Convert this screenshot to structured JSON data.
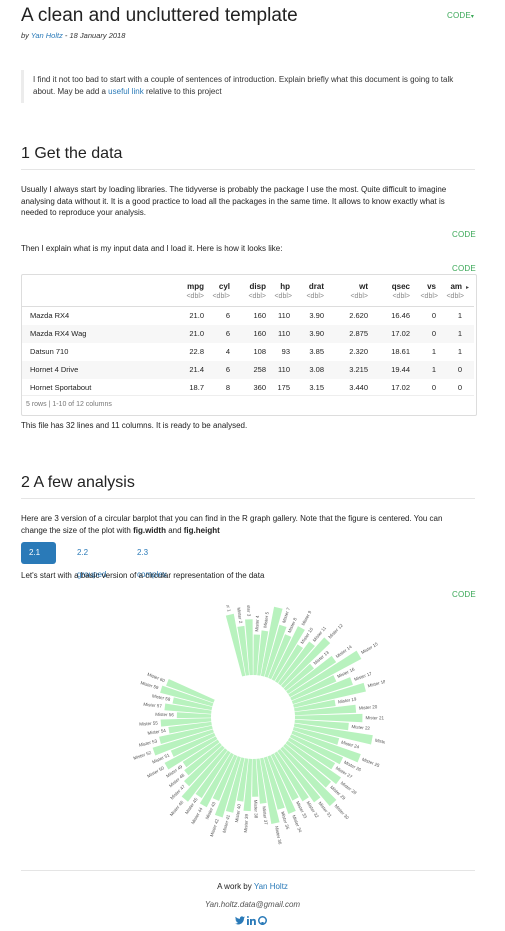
{
  "header": {
    "title": "A clean and uncluttered template",
    "byline_prefix": "by ",
    "author": "Yan Holtz",
    "byline_date": " - 18 January 2018",
    "code_menu": "CODE"
  },
  "intro": {
    "text_before": "I find it not too bad to start with a couple of sentences of introduction. Explain briefly what this document is going to talk about. May be add a ",
    "link": "useful link",
    "text_after": " relative to this project"
  },
  "section1": {
    "title": "1 Get the data",
    "para1": [
      "Usually I always start by loading libraries. The tidyverse is probably the package I use the most. Quite difficult to imagine",
      "analysing data without it. It is a good practice to load all the packages in the same time. It allows to know exactly what is",
      "needed to reproduce your analysis."
    ],
    "code1": "CODE",
    "para2": "Then I explain what is my input data and I load it. Here is how it looks like:",
    "code2": "CODE",
    "table": {
      "columns": [
        "mpg",
        "cyl",
        "disp",
        "hp",
        "drat",
        "wt",
        "qsec",
        "vs",
        "am"
      ],
      "types": [
        "<dbl>",
        "<dbl>",
        "<dbl>",
        "<dbl>",
        "<dbl>",
        "<dbl>",
        "<dbl>",
        "<dbl>",
        "<dbl>"
      ],
      "rows": [
        {
          "name": "Mazda RX4",
          "values": [
            "21.0",
            "6",
            "160",
            "110",
            "3.90",
            "2.620",
            "16.46",
            "0",
            "1"
          ]
        },
        {
          "name": "Mazda RX4 Wag",
          "values": [
            "21.0",
            "6",
            "160",
            "110",
            "3.90",
            "2.875",
            "17.02",
            "0",
            "1"
          ]
        },
        {
          "name": "Datsun 710",
          "values": [
            "22.8",
            "4",
            "108",
            "93",
            "3.85",
            "2.320",
            "18.61",
            "1",
            "1"
          ]
        },
        {
          "name": "Hornet 4 Drive",
          "values": [
            "21.4",
            "6",
            "258",
            "110",
            "3.08",
            "3.215",
            "19.44",
            "1",
            "0"
          ]
        },
        {
          "name": "Hornet Sportabout",
          "values": [
            "18.7",
            "8",
            "360",
            "175",
            "3.15",
            "3.440",
            "17.02",
            "0",
            "0"
          ]
        }
      ],
      "footer": "5 rows | 1-10 of 12 columns",
      "more_arrow": "▸"
    },
    "para3": "This file has 32 lines and 11 columns. It is ready to be analysed."
  },
  "section2": {
    "title": "2 A few analysis",
    "para1_line1": "Here are 3 version of a circular barplot that you can find in the R graph gallery. Note that the figure is centered. You can",
    "para1_line2_prefix": "change the size of the plot with ",
    "bold1": "fig.width",
    "and": " and ",
    "bold2": "fig.height",
    "tabs": [
      "2.1 basic",
      "2.2 grouped",
      "2.3 complex"
    ],
    "para2": "Let's start with a basic version of a circular representation of the data",
    "code": "CODE"
  },
  "chart_data": {
    "type": "bar",
    "polar": true,
    "bar_color": "#b8f2be",
    "categories": [
      "Mister 1",
      "Mister 2",
      "Mister 3",
      "Mister 4",
      "Mister 5",
      "Mister 6",
      "Mister 7",
      "Mister 8",
      "Mister 9",
      "Mister 10",
      "Mister 11",
      "Mister 12",
      "Mister 13",
      "Mister 14",
      "Mister 15",
      "Mister 16",
      "Mister 17",
      "Mister 18",
      "Mister 19",
      "Mister 20",
      "Mister 21",
      "Mister 22",
      "Mister 23",
      "Mister 24",
      "Mister 25",
      "Mister 26",
      "Mister 27",
      "Mister 28",
      "Mister 29",
      "Mister 30",
      "Mister 31",
      "Mister 32",
      "Mister 33",
      "Mister 34",
      "Mister 35",
      "Mister 36",
      "Mister 37",
      "Mister 38",
      "Mister 39",
      "Mister 40",
      "Mister 41",
      "Mister 42",
      "Mister 43",
      "Mister 44",
      "Mister 45",
      "Mister 46",
      "Mister 47",
      "Mister 48",
      "Mister 49",
      "Mister 50",
      "Mister 51",
      "Mister 52",
      "Mister 53",
      "Mister 54",
      "Mister 55",
      "Mister 56",
      "Mister 57",
      "Mister 58",
      "Mister 59",
      "Mister 60"
    ],
    "values": [
      70,
      55,
      62,
      45,
      50,
      78,
      60,
      52,
      66,
      48,
      58,
      72,
      40,
      64,
      90,
      54,
      70,
      82,
      46,
      68,
      75,
      60,
      88,
      52,
      80,
      63,
      58,
      72,
      66,
      84,
      70,
      62,
      56,
      68,
      60,
      74,
      50,
      42,
      58,
      48,
      62,
      70,
      54,
      66,
      60,
      72,
      58,
      50,
      46,
      64,
      52,
      70,
      60,
      48,
      56,
      38,
      52,
      44,
      60,
      56
    ]
  },
  "footer": {
    "prefix": "A work by ",
    "author": "Yan Holtz",
    "email": "Yan.holtz.data@gmail.com"
  }
}
